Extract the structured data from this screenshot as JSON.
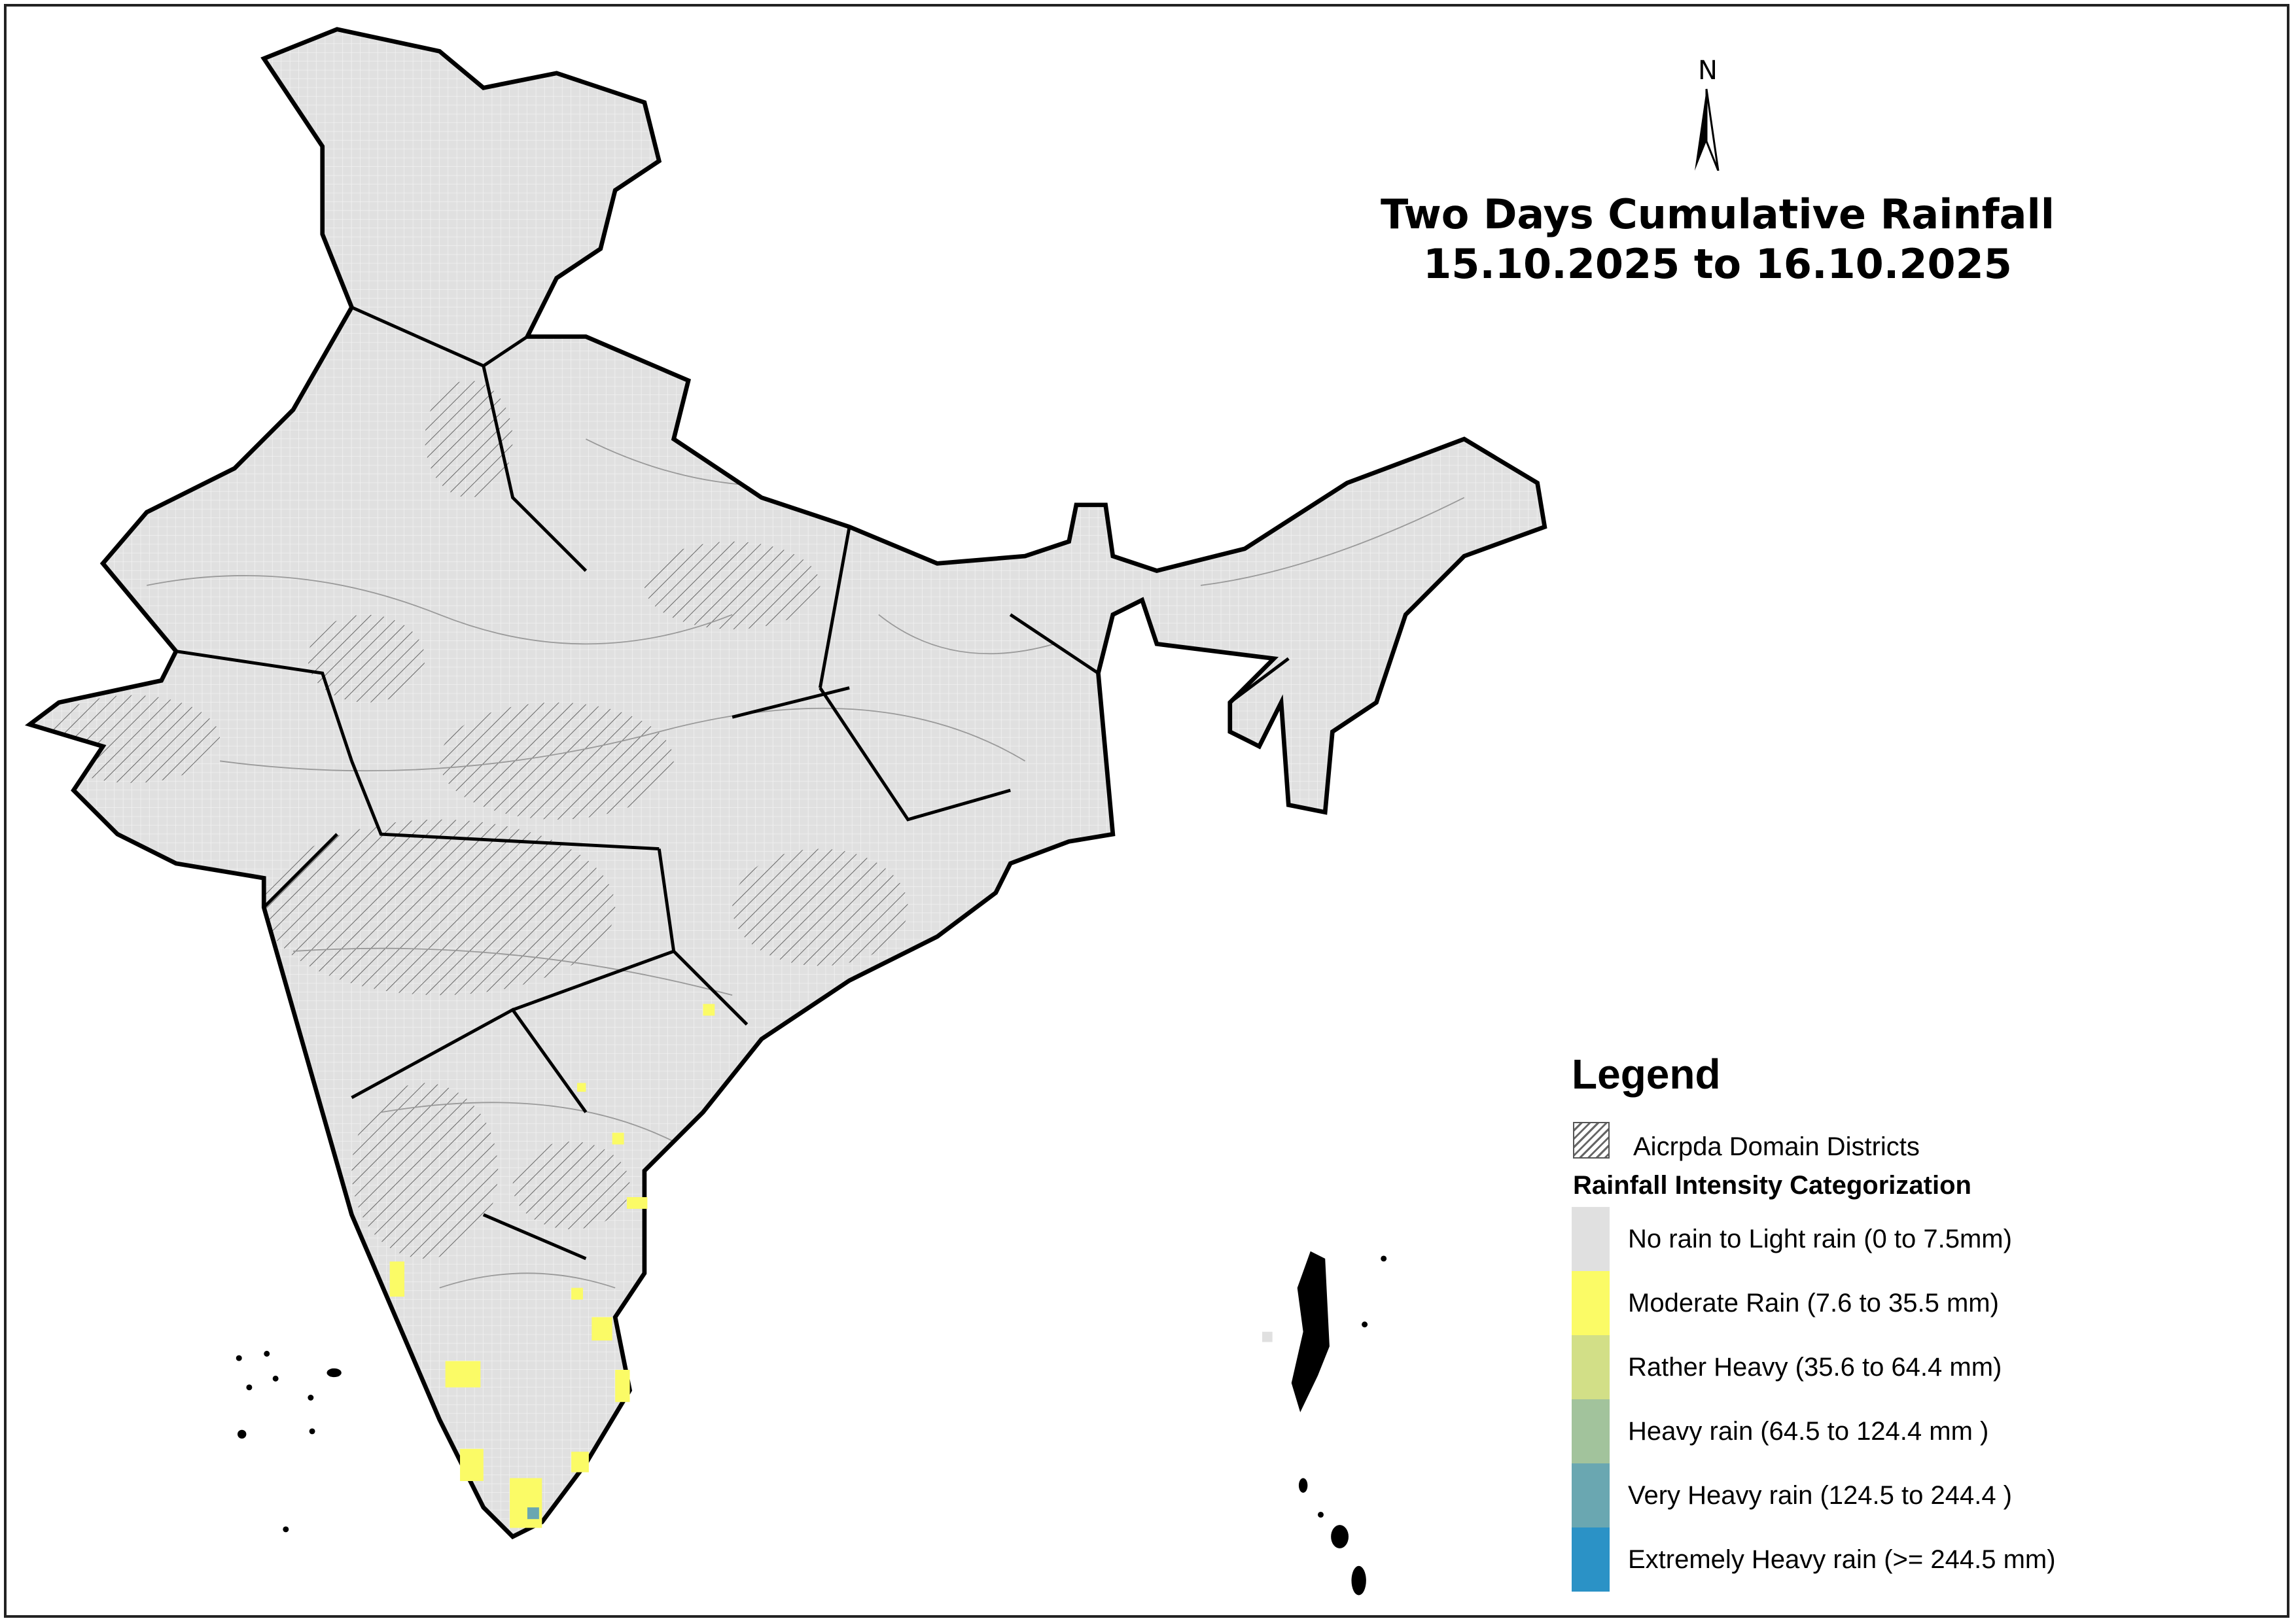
{
  "title": {
    "line1": "Two Days Cumulative Rainfall",
    "line2": "15.10.2025 to 16.10.2025"
  },
  "north_arrow": {
    "label": "N",
    "icon": "north-arrow-icon"
  },
  "legend": {
    "title": "Legend",
    "hatch_label": "Aicrpda Domain Districts",
    "category_title": "Rainfall Intensity Categorization",
    "categories": [
      {
        "label": "No rain to Light rain (0 to 7.5mm)",
        "color": "#e0e0e0"
      },
      {
        "label": "Moderate Rain (7.6 to 35.5 mm)",
        "color": "#fbfb66"
      },
      {
        "label": "Rather Heavy (35.6 to 64.4 mm)",
        "color": "#d2df87"
      },
      {
        "label": "Heavy rain (64.5 to 124.4 mm )",
        "color": "#a2c39c"
      },
      {
        "label": "Very Heavy rain (124.5 to 244.4 )",
        "color": "#6aa7b1"
      },
      {
        "label": "Extremely Heavy rain  (>= 244.5 mm)",
        "color": "#2b92c6"
      }
    ]
  }
}
